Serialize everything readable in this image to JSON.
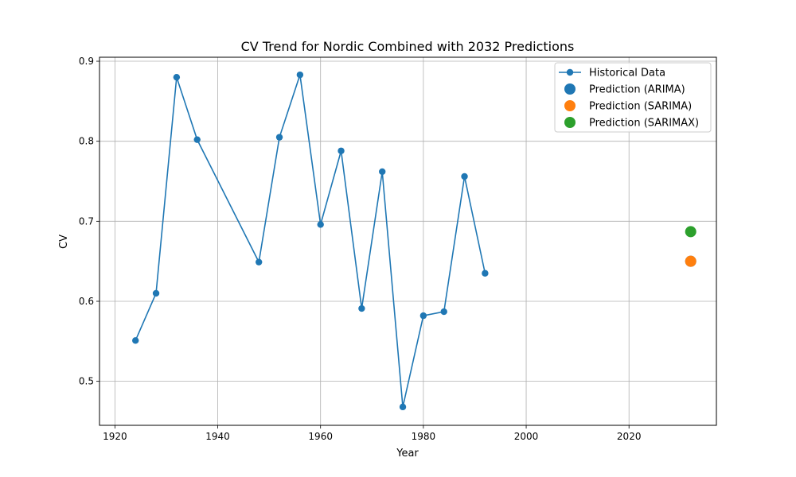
{
  "chart_data": {
    "type": "line",
    "title": "CV Trend for Nordic Combined with 2032 Predictions",
    "xlabel": "Year",
    "ylabel": "CV",
    "xlim": [
      1917,
      2037
    ],
    "ylim": [
      0.445,
      0.905
    ],
    "xticks": [
      1920,
      1940,
      1960,
      1980,
      2000,
      2020
    ],
    "yticks": [
      0.5,
      0.6,
      0.7,
      0.8,
      0.9
    ],
    "grid": true,
    "legend_position": "top-right",
    "series": [
      {
        "name": "Historical Data",
        "color": "#1f77b4",
        "x": [
          1924,
          1928,
          1932,
          1936,
          1948,
          1952,
          1956,
          1960,
          1964,
          1968,
          1972,
          1976,
          1980,
          1984,
          1988,
          1992
        ],
        "y": [
          0.551,
          0.61,
          0.88,
          0.802,
          0.649,
          0.805,
          0.883,
          0.696,
          0.788,
          0.591,
          0.762,
          0.468,
          0.582,
          0.587,
          0.756,
          0.635
        ]
      }
    ],
    "predictions": [
      {
        "name": "Prediction (ARIMA)",
        "color": "#1f77b4",
        "x": 2032,
        "y": 0.65
      },
      {
        "name": "Prediction (SARIMA)",
        "color": "#ff7f0e",
        "x": 2032,
        "y": 0.65
      },
      {
        "name": "Prediction (SARIMAX)",
        "color": "#2ca02c",
        "x": 2032,
        "y": 0.687
      }
    ]
  }
}
